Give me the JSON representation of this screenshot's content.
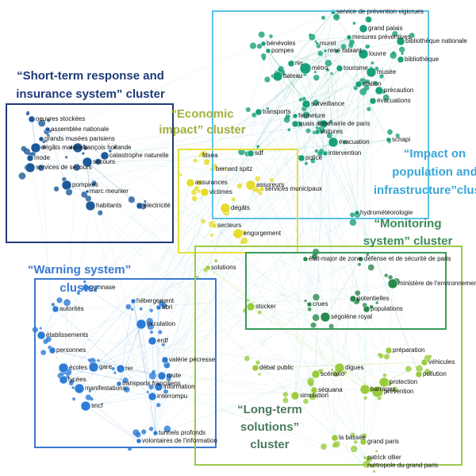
{
  "clusters": [
    {
      "lines": [
        "“Impact on",
        "population and",
        "infrastructure”cluster"
      ],
      "nodes": [
        {
          "label": "service de prévention vigicrues"
        },
        {
          "label": "grand palais"
        },
        {
          "label": "mesures préventives"
        },
        {
          "label": "bibliothèque nationale"
        },
        {
          "label": "bénévoles"
        },
        {
          "label": "pompes"
        },
        {
          "label": "muret"
        },
        {
          "label": "rené rabiant"
        },
        {
          "label": "louvre"
        },
        {
          "label": "bibliothèque"
        },
        {
          "label": "métro"
        },
        {
          "label": "rer"
        },
        {
          "label": "tourisme"
        },
        {
          "label": "musée"
        },
        {
          "label": "bateau"
        },
        {
          "label": "station"
        },
        {
          "label": "précaution"
        },
        {
          "label": "évacuations"
        },
        {
          "label": "transports"
        },
        {
          "label": "surveillance"
        },
        {
          "label": "quais anne"
        },
        {
          "label": "mairie de paris"
        },
        {
          "label": "évacuation"
        },
        {
          "label": "sdf"
        },
        {
          "label": "police"
        },
        {
          "label": "intervention"
        },
        {
          "label": "hydrométéorologie"
        },
        {
          "label": "voitures"
        },
        {
          "label": "fermeture"
        },
        {
          "label": "schapi"
        }
      ]
    },
    {
      "lines": [
        "“Short-term response and",
        "insurance system” cluster"
      ],
      "nodes": [
        {
          "label": "oeuvres stockées"
        },
        {
          "label": "assemblée nationale"
        },
        {
          "label": "grands musées parisiens"
        },
        {
          "label": "dégâts matériels"
        },
        {
          "label": "françois hollande"
        },
        {
          "label": "mode"
        },
        {
          "label": "catastrophe naturelle"
        },
        {
          "label": "secours"
        },
        {
          "label": "services de secours"
        },
        {
          "label": "pompiers"
        },
        {
          "label": "habitants"
        },
        {
          "label": "électricité"
        },
        {
          "label": "marc meunier"
        }
      ]
    },
    {
      "lines": [
        "“Economic",
        "impact” cluster"
      ],
      "nodes": [
        {
          "label": "fdsea"
        },
        {
          "label": "bernard spitz"
        },
        {
          "label": "assureurs"
        },
        {
          "label": "victimes"
        },
        {
          "label": "services municipaux"
        },
        {
          "label": "assurances"
        },
        {
          "label": "dégâts"
        },
        {
          "label": "secteurs"
        },
        {
          "label": "engorgement"
        }
      ]
    },
    {
      "lines": [
        "“Monitoring",
        "system” cluster"
      ],
      "nodes": [
        {
          "label": "état-major de zone"
        },
        {
          "label": "défense et de sécurité de paris"
        },
        {
          "label": "ministère de l'environnement"
        },
        {
          "label": "ségolène royal"
        },
        {
          "label": "crues"
        },
        {
          "label": "potentielles"
        },
        {
          "label": "populations"
        }
      ]
    },
    {
      "lines": [
        "“Warning system”",
        "cluster"
      ],
      "nodes": [
        {
          "label": "gymnase"
        },
        {
          "label": "hébergement"
        },
        {
          "label": "abri"
        },
        {
          "label": "circulation"
        },
        {
          "label": "erdf"
        },
        {
          "label": "établissements"
        },
        {
          "label": "personnes"
        },
        {
          "label": "écoles"
        },
        {
          "label": "lycées"
        },
        {
          "label": "gare"
        },
        {
          "label": "rer"
        },
        {
          "label": "route"
        },
        {
          "label": "valérie pécresse"
        },
        {
          "label": "transports franciliens"
        },
        {
          "label": "information"
        },
        {
          "label": "interrompu"
        },
        {
          "label": "manifestations"
        },
        {
          "label": "sncf"
        },
        {
          "label": "tunnels profonds"
        },
        {
          "label": "volontaires de l'information"
        },
        {
          "label": "autorités"
        }
      ]
    },
    {
      "lines": [
        "“Long-term",
        "solutions”",
        "cluster"
      ],
      "nodes": [
        {
          "label": "solutions"
        },
        {
          "label": "stocker"
        },
        {
          "label": "débat public"
        },
        {
          "label": "scénario"
        },
        {
          "label": "digues"
        },
        {
          "label": "préparation"
        },
        {
          "label": "véhicules"
        },
        {
          "label": "pollution"
        },
        {
          "label": "protection"
        },
        {
          "label": "barrages"
        },
        {
          "label": "prévention"
        },
        {
          "label": "simulation"
        },
        {
          "label": "séquana"
        },
        {
          "label": "la bassée"
        },
        {
          "label": "grand paris"
        },
        {
          "label": "patrick ollier"
        },
        {
          "label": "métropole du grand paris"
        }
      ]
    }
  ]
}
